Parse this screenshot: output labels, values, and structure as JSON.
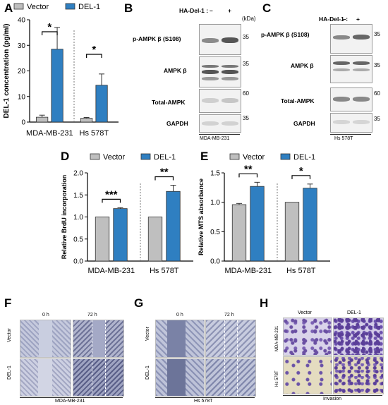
{
  "panels": {
    "A": "A",
    "B": "B",
    "C": "C",
    "D": "D",
    "E": "E",
    "F": "F",
    "G": "G",
    "H": "H"
  },
  "colors": {
    "vector": "#bfbfbf",
    "del1": "#2f7fc1",
    "bar_edge": "#333333"
  },
  "legend": {
    "vector": "Vector",
    "del1": "DEL-1"
  },
  "chart_data": [
    {
      "panel": "A",
      "type": "bar",
      "categories": [
        "MDA-MB-231",
        "Hs 578T"
      ],
      "series": [
        {
          "name": "Vector",
          "values": [
            1.9,
            1.5
          ],
          "errors": [
            0.8,
            0.3
          ]
        },
        {
          "name": "DEL-1",
          "values": [
            28.5,
            14.4
          ],
          "errors": [
            8.5,
            4.4
          ]
        }
      ],
      "ylabel": "DEL-1 concentration (pg/ml)",
      "ylim": [
        0,
        40
      ],
      "yticks": [
        "0",
        "10",
        "20",
        "30",
        "40"
      ],
      "significance": [
        "*",
        "*"
      ]
    },
    {
      "panel": "D",
      "type": "bar",
      "categories": [
        "MDA-MB-231",
        "Hs 578T"
      ],
      "series": [
        {
          "name": "Vector",
          "values": [
            1.0,
            1.0
          ],
          "errors": [
            0,
            0
          ]
        },
        {
          "name": "DEL-1",
          "values": [
            1.19,
            1.58
          ],
          "errors": [
            0.02,
            0.14
          ]
        }
      ],
      "ylabel": "Relative BrdU incorporation",
      "ylim": [
        0,
        2.0
      ],
      "yticks": [
        "0.0",
        "0.5",
        "1.0",
        "1.5",
        "2.0"
      ],
      "significance": [
        "***",
        "**"
      ]
    },
    {
      "panel": "E",
      "type": "bar",
      "categories": [
        "MDA-MB-231",
        "Hs 578T"
      ],
      "series": [
        {
          "name": "Vector",
          "values": [
            0.96,
            1.0
          ],
          "errors": [
            0.02,
            0
          ]
        },
        {
          "name": "DEL-1",
          "values": [
            1.27,
            1.24
          ],
          "errors": [
            0.07,
            0.07
          ]
        }
      ],
      "ylabel": "Relative MTS absorbance",
      "ylim": [
        0,
        1.5
      ],
      "yticks": [
        "0.0",
        "0.5",
        "1.0",
        "1.5"
      ],
      "significance": [
        "**",
        "*"
      ]
    }
  ],
  "blots": {
    "header": "HA-Del-1 :",
    "lanes": [
      "–",
      "+"
    ],
    "kda_unit": "(kDa)",
    "rows": [
      {
        "label": "p-AMPK β (S108)",
        "kda": "35"
      },
      {
        "label": "AMPK β",
        "kda": "35"
      },
      {
        "label": "Total-AMPK",
        "kda": "60"
      },
      {
        "label": "GAPDH",
        "kda": "35"
      }
    ],
    "B_cell": "MDA-MB-231",
    "C_cell": "Hs 578T"
  },
  "scratch": {
    "times": [
      "0 h",
      "72 h"
    ],
    "rows": [
      "Vector",
      "DEL-1"
    ],
    "F_cell": "MDA-MB-231",
    "G_cell": "Hs 578T"
  },
  "invasion": {
    "cols": [
      "Vector",
      "DEL-1"
    ],
    "rows": [
      "MDA-MB-231",
      "Hs 578T"
    ],
    "caption": "Invasion"
  }
}
